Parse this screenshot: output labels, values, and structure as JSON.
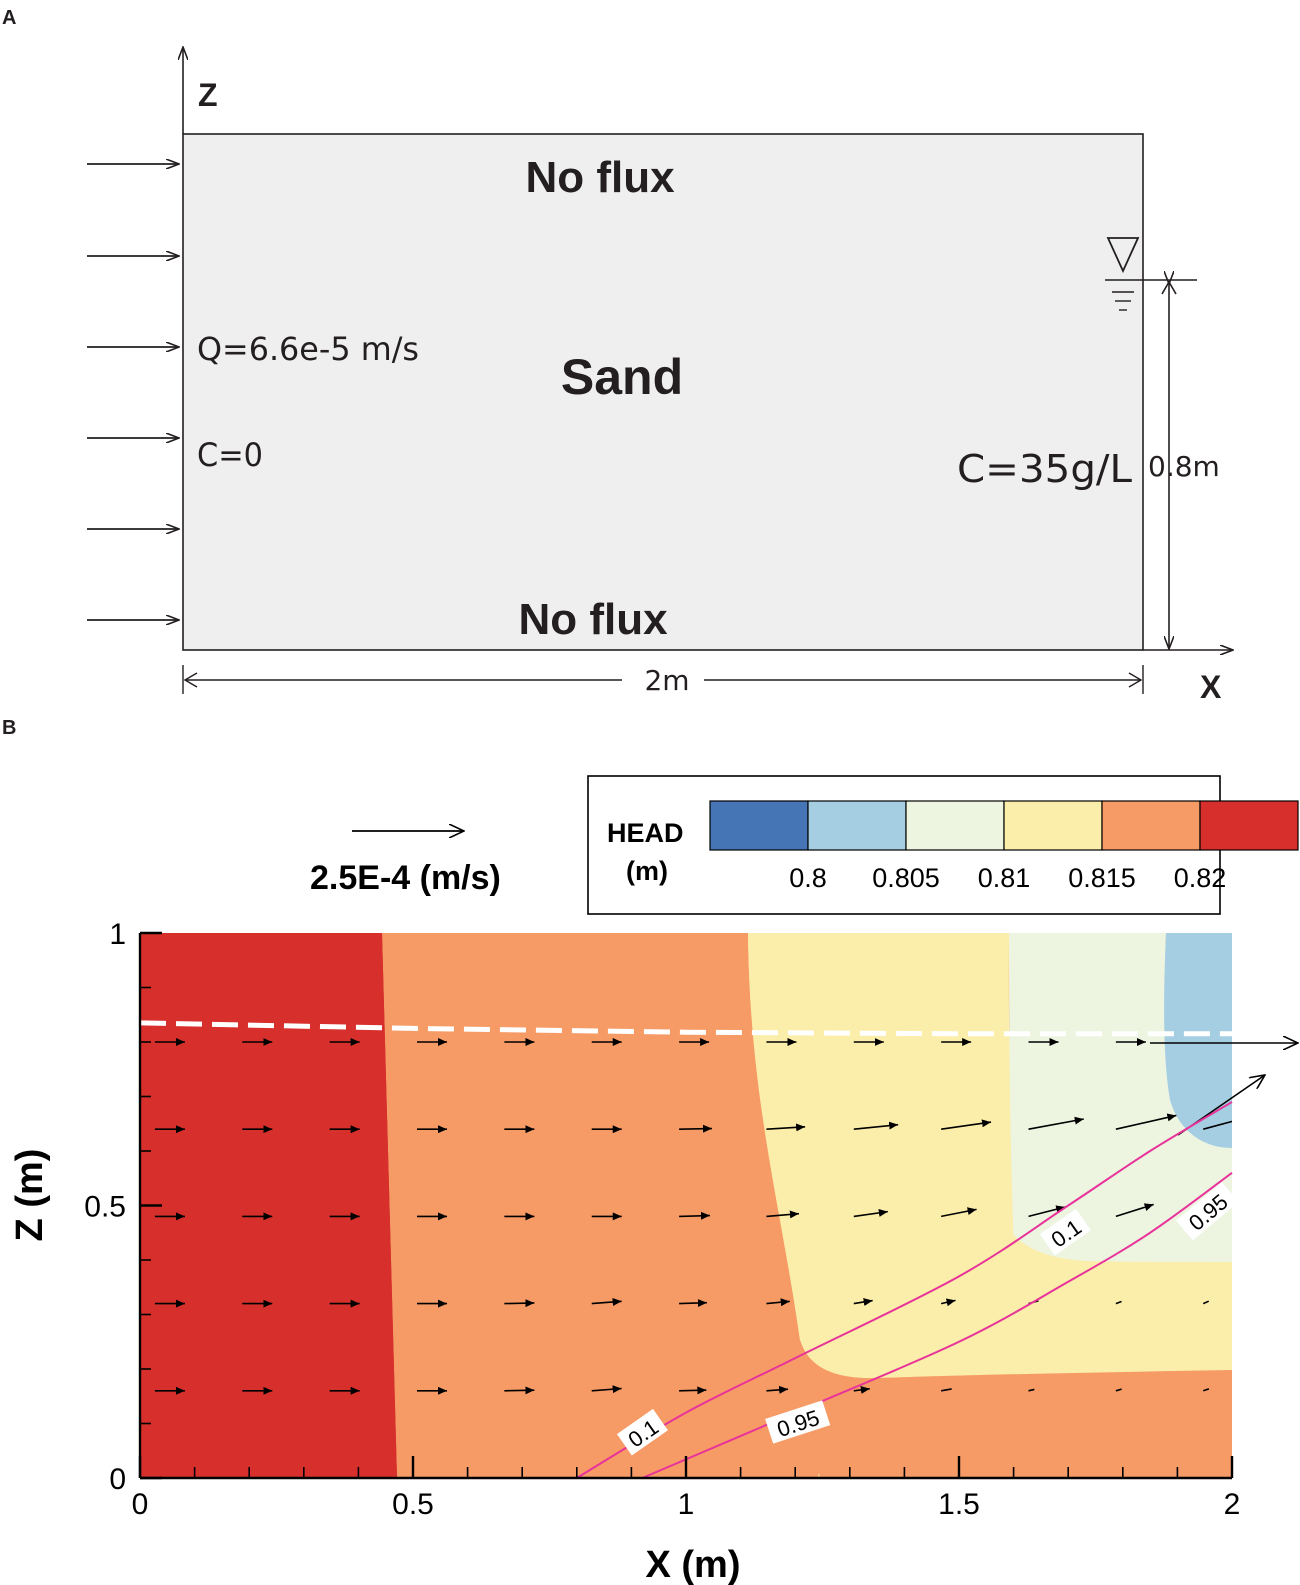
{
  "panel_a": {
    "letter": "A",
    "axis_z": "Z",
    "axis_x": "X",
    "top_boundary": "No flux",
    "bottom_boundary": "No flux",
    "medium": "Sand",
    "inflow_rate": "Q=6.6e-5 m/s",
    "inflow_conc": "C=0",
    "sea_conc": "C=35g/L",
    "height_dim": "0.8m",
    "width_dim": "2m"
  },
  "panel_b": {
    "letter": "B",
    "vector_scale_label": "2.5E-4 (m/s)",
    "legend": {
      "title_line1": "HEAD",
      "title_line2": "(m)",
      "ticks": [
        "0.8",
        "0.805",
        "0.81",
        "0.815",
        "0.82"
      ],
      "colors": [
        "#4575b4",
        "#a6cee3",
        "#edf5e1",
        "#fbedaa",
        "#f69b66",
        "#d7302c"
      ]
    },
    "contour_labels": [
      "0.1",
      "0.95",
      "0.1",
      "0.95"
    ]
  },
  "chart_data": {
    "type": "heatmap",
    "xlabel": "X (m)",
    "ylabel": "Z (m)",
    "xlim": [
      0,
      2
    ],
    "ylim": [
      0,
      1
    ],
    "xticks": [
      "0",
      "0.5",
      "1",
      "1.5",
      "2"
    ],
    "yticks": [
      "0",
      "0.5",
      "1"
    ],
    "head_levels": [
      0.8,
      0.805,
      0.81,
      0.815,
      0.82
    ],
    "water_table_z": [
      {
        "x": 0.0,
        "z": 0.835
      },
      {
        "x": 0.5,
        "z": 0.825
      },
      {
        "x": 1.0,
        "z": 0.818
      },
      {
        "x": 1.5,
        "z": 0.815
      },
      {
        "x": 2.0,
        "z": 0.815
      }
    ],
    "salinity_contours": [
      {
        "label": "0.1",
        "points": [
          [
            0.8,
            0.0
          ],
          [
            1.0,
            0.12
          ],
          [
            1.2,
            0.22
          ],
          [
            1.5,
            0.37
          ],
          [
            1.7,
            0.5
          ],
          [
            1.85,
            0.6
          ],
          [
            2.0,
            0.69
          ]
        ]
      },
      {
        "label": "0.95",
        "points": [
          [
            0.92,
            0.0
          ],
          [
            1.2,
            0.12
          ],
          [
            1.5,
            0.25
          ],
          [
            1.7,
            0.36
          ],
          [
            1.85,
            0.45
          ],
          [
            2.0,
            0.56
          ]
        ]
      }
    ]
  }
}
